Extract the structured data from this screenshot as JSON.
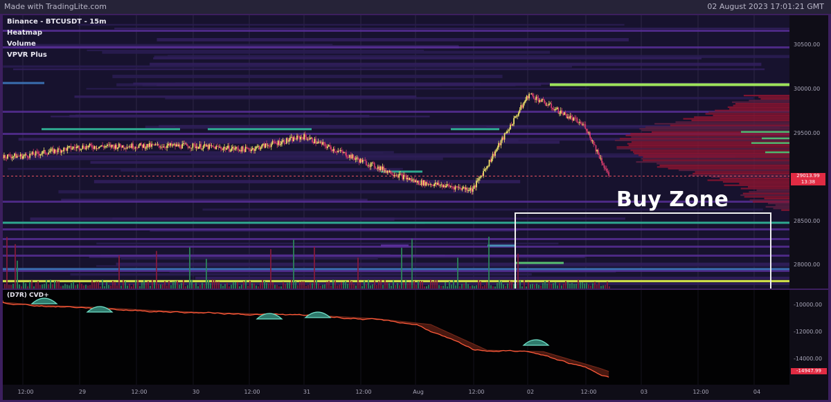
{
  "header": {
    "brand": "Made with TradingLite.com",
    "timestamp": "02 August 2023 17:01:21 GMT"
  },
  "legend": {
    "symbol": "Binance - BTCUSDT - 15m",
    "layers": [
      "Heatmap",
      "Volume",
      "VPVR Plus"
    ]
  },
  "annotation": {
    "label": "Buy Zone"
  },
  "price_axis": {
    "ticks": [
      "30500.00",
      "30000.00",
      "29500.00",
      "28500.00",
      "28000.00"
    ],
    "current_price": "29013.99",
    "countdown": "13:38"
  },
  "cvd": {
    "label": "(D7R) CVD+",
    "ticks": [
      "-10000.00",
      "-12000.00",
      "-14000.00"
    ],
    "current_value": "-14947.99"
  },
  "time_axis": {
    "ticks": [
      "12:00",
      "29",
      "12:00",
      "30",
      "12:00",
      "31",
      "12:00",
      "Aug",
      "12:00",
      "02",
      "12:00",
      "03",
      "12:00",
      "04"
    ]
  },
  "colors": {
    "pane_bg": "#17122e",
    "frame": "#3c1f5e",
    "bull_candle": "#f0e36a",
    "bear_candle": "#d03a6a",
    "price_line": "#e8515f",
    "cvd_bear": "#ff5a3a",
    "cvd_bull": "#6fe0c8",
    "level_yellow": "#d8e84a",
    "level_teal": "#2fa890",
    "level_blue": "#3a6eb0",
    "level_purple": "#5a2f9a"
  },
  "chart_data": [
    {
      "type": "line",
      "title": "Binance - BTCUSDT - 15m",
      "xlabel": "",
      "ylabel": "",
      "x": [
        "Jul 28 12:00",
        "Jul 29 00:00",
        "Jul 29 12:00",
        "Jul 30 00:00",
        "Jul 30 12:00",
        "Jul 31 00:00",
        "Jul 31 12:00",
        "Aug 01 00:00",
        "Aug 01 12:00",
        "Aug 02 00:00",
        "Aug 02 12:00",
        "Aug 02 17:00"
      ],
      "series": [
        {
          "values": [
            29230,
            29330,
            29340,
            29340,
            29300,
            29440,
            29180,
            28950,
            28870,
            29900,
            29550,
            29014
          ]
        }
      ],
      "ylim": [
        27800,
        30750
      ],
      "levels": [
        {
          "price": 30000,
          "color": "yellow-green",
          "start": "Aug 02 00:00"
        },
        {
          "price": 29520,
          "color": "teal"
        },
        {
          "price": 28510,
          "color": "teal"
        },
        {
          "price": 28010,
          "color": "blue"
        },
        {
          "price": 27880,
          "color": "yellow"
        }
      ],
      "buy_zone_price_range": [
        27770,
        28600
      ]
    },
    {
      "type": "area",
      "title": "(D7R) CVD+",
      "x": [
        "Jul 28 00:00",
        "Jul 28 12:00",
        "Jul 29 00:00",
        "Jul 29 12:00",
        "Jul 30 00:00",
        "Jul 30 12:00",
        "Jul 31 00:00",
        "Jul 31 12:00",
        "Aug 01 00:00",
        "Aug 01 12:00",
        "Aug 02 00:00",
        "Aug 02 12:00",
        "Aug 02 17:00"
      ],
      "series": [
        {
          "values": [
            -9900,
            -10200,
            -10350,
            -10550,
            -10700,
            -10800,
            -10900,
            -11100,
            -11500,
            -13200,
            -13300,
            -14400,
            -14948
          ]
        }
      ],
      "ylim": [
        -15500,
        -9200
      ]
    }
  ]
}
